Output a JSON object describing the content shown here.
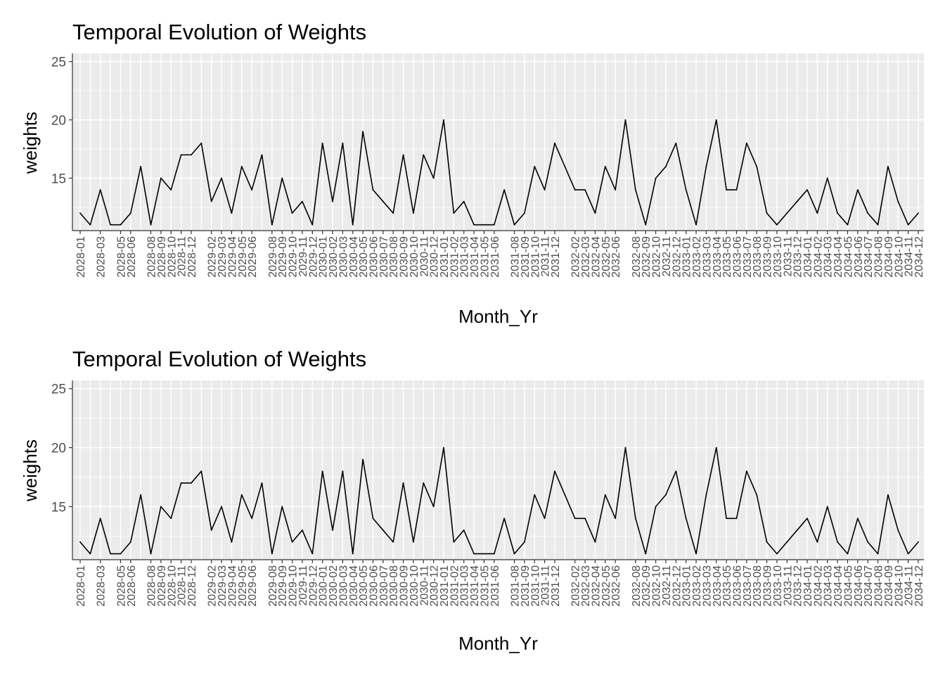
{
  "chart_data": [
    {
      "type": "line",
      "title": "Temporal Evolution of Weights",
      "xlabel": "Month_Yr",
      "ylabel": "weights",
      "ylim": [
        10.5,
        25.7
      ],
      "yticks": [
        15,
        20,
        25
      ],
      "grid": true,
      "x_tick_labels": [
        "2028-01",
        "2028-03",
        "2028-05",
        "2028-06",
        "2028-08",
        "2028-09",
        "2028-10",
        "2028-11",
        "2028-12",
        "2029-02",
        "2029-03",
        "2029-04",
        "2029-05",
        "2029-06",
        "2029-08",
        "2029-09",
        "2029-10",
        "2029-11",
        "2029-12",
        "2030-01",
        "2030-02",
        "2030-03",
        "2030-04",
        "2030-05",
        "2030-06",
        "2030-07",
        "2030-08",
        "2030-09",
        "2030-10",
        "2030-11",
        "2030-12",
        "2031-01",
        "2031-02",
        "2031-03",
        "2031-04",
        "2031-05",
        "2031-06",
        "2031-08",
        "2031-09",
        "2031-10",
        "2031-11",
        "2031-12",
        "2032-02",
        "2032-03",
        "2032-04",
        "2032-05",
        "2032-06",
        "2032-08",
        "2032-09",
        "2032-10",
        "2032-11",
        "2032-12",
        "2033-01",
        "2033-02",
        "2033-03",
        "2033-04",
        "2033-05",
        "2033-06",
        "2033-07",
        "2033-08",
        "2033-09",
        "2033-10",
        "2033-11",
        "2033-12",
        "2034-01",
        "2034-02",
        "2034-03",
        "2034-04",
        "2034-05",
        "2034-06",
        "2034-07",
        "2034-08",
        "2034-09",
        "2034-10",
        "2034-11",
        "2034-12"
      ],
      "series": [
        {
          "color": "#000000",
          "x": [
            "2028-01",
            "2028-02",
            "2028-03",
            "2028-04",
            "2028-05",
            "2028-06",
            "2028-07",
            "2028-08",
            "2028-09",
            "2028-10",
            "2028-11",
            "2028-12",
            "2029-01",
            "2029-02",
            "2029-03",
            "2029-04",
            "2029-05",
            "2029-06",
            "2029-07",
            "2029-08",
            "2029-09",
            "2029-10",
            "2029-11",
            "2029-12",
            "2030-01",
            "2030-02",
            "2030-03",
            "2030-04",
            "2030-05",
            "2030-06",
            "2030-07",
            "2030-08",
            "2030-09",
            "2030-10",
            "2030-11",
            "2030-12",
            "2031-01",
            "2031-02",
            "2031-03",
            "2031-04",
            "2031-05",
            "2031-06",
            "2031-07",
            "2031-08",
            "2031-09",
            "2031-10",
            "2031-11",
            "2031-12",
            "2032-01",
            "2032-02",
            "2032-03",
            "2032-04",
            "2032-05",
            "2032-06",
            "2032-07",
            "2032-08",
            "2032-09",
            "2032-10",
            "2032-11",
            "2032-12",
            "2033-01",
            "2033-02",
            "2033-03",
            "2033-04",
            "2033-05",
            "2033-06",
            "2033-07",
            "2033-08",
            "2033-09",
            "2033-10",
            "2033-11",
            "2033-12",
            "2034-01",
            "2034-02",
            "2034-03",
            "2034-04",
            "2034-05",
            "2034-06",
            "2034-07",
            "2034-08",
            "2034-09",
            "2034-10",
            "2034-11",
            "2034-12"
          ],
          "values": [
            12,
            11,
            14,
            11,
            11,
            12,
            16,
            11,
            15,
            14,
            17,
            17,
            18,
            13,
            15,
            12,
            16,
            14,
            17,
            11,
            15,
            12,
            13,
            11,
            18,
            13,
            18,
            11,
            19,
            14,
            13,
            12,
            17,
            12,
            17,
            15,
            20,
            12,
            13,
            11,
            11,
            11,
            14,
            11,
            12,
            16,
            14,
            18,
            16,
            14,
            14,
            12,
            16,
            14,
            20,
            14,
            11,
            15,
            16,
            18,
            14,
            11,
            16,
            20,
            14,
            14,
            18,
            16,
            12,
            11,
            12,
            13,
            14,
            12,
            15,
            12,
            11,
            14,
            12,
            11,
            16,
            13,
            11,
            12
          ]
        }
      ]
    },
    {
      "type": "line",
      "title": "Temporal Evolution of Weights",
      "xlabel": "Month_Yr",
      "ylabel": "weights",
      "ylim": [
        10.5,
        25.7
      ],
      "yticks": [
        15,
        20,
        25
      ],
      "grid": true,
      "x_tick_labels": [
        "2028-01",
        "2028-03",
        "2028-05",
        "2028-06",
        "2028-08",
        "2028-09",
        "2028-10",
        "2028-11",
        "2028-12",
        "2029-02",
        "2029-03",
        "2029-04",
        "2029-05",
        "2029-06",
        "2029-08",
        "2029-09",
        "2029-10",
        "2029-11",
        "2029-12",
        "2030-01",
        "2030-02",
        "2030-03",
        "2030-04",
        "2030-05",
        "2030-06",
        "2030-07",
        "2030-08",
        "2030-09",
        "2030-10",
        "2030-11",
        "2030-12",
        "2031-01",
        "2031-02",
        "2031-03",
        "2031-04",
        "2031-05",
        "2031-06",
        "2031-08",
        "2031-09",
        "2031-10",
        "2031-11",
        "2031-12",
        "2032-02",
        "2032-03",
        "2032-04",
        "2032-05",
        "2032-06",
        "2032-08",
        "2032-09",
        "2032-10",
        "2032-11",
        "2032-12",
        "2033-01",
        "2033-02",
        "2033-03",
        "2033-04",
        "2033-05",
        "2033-06",
        "2033-07",
        "2033-08",
        "2033-09",
        "2033-10",
        "2033-11",
        "2033-12",
        "2034-01",
        "2034-02",
        "2034-03",
        "2034-04",
        "2034-05",
        "2034-06",
        "2034-07",
        "2034-08",
        "2034-09",
        "2034-10",
        "2034-11",
        "2034-12"
      ],
      "series": [
        {
          "color": "#000000",
          "x": [
            "2028-01",
            "2028-02",
            "2028-03",
            "2028-04",
            "2028-05",
            "2028-06",
            "2028-07",
            "2028-08",
            "2028-09",
            "2028-10",
            "2028-11",
            "2028-12",
            "2029-01",
            "2029-02",
            "2029-03",
            "2029-04",
            "2029-05",
            "2029-06",
            "2029-07",
            "2029-08",
            "2029-09",
            "2029-10",
            "2029-11",
            "2029-12",
            "2030-01",
            "2030-02",
            "2030-03",
            "2030-04",
            "2030-05",
            "2030-06",
            "2030-07",
            "2030-08",
            "2030-09",
            "2030-10",
            "2030-11",
            "2030-12",
            "2031-01",
            "2031-02",
            "2031-03",
            "2031-04",
            "2031-05",
            "2031-06",
            "2031-07",
            "2031-08",
            "2031-09",
            "2031-10",
            "2031-11",
            "2031-12",
            "2032-01",
            "2032-02",
            "2032-03",
            "2032-04",
            "2032-05",
            "2032-06",
            "2032-07",
            "2032-08",
            "2032-09",
            "2032-10",
            "2032-11",
            "2032-12",
            "2033-01",
            "2033-02",
            "2033-03",
            "2033-04",
            "2033-05",
            "2033-06",
            "2033-07",
            "2033-08",
            "2033-09",
            "2033-10",
            "2033-11",
            "2033-12",
            "2034-01",
            "2034-02",
            "2034-03",
            "2034-04",
            "2034-05",
            "2034-06",
            "2034-07",
            "2034-08",
            "2034-09",
            "2034-10",
            "2034-11",
            "2034-12"
          ],
          "values": [
            12,
            11,
            14,
            11,
            11,
            12,
            16,
            11,
            15,
            14,
            17,
            17,
            18,
            13,
            15,
            12,
            16,
            14,
            17,
            11,
            15,
            12,
            13,
            11,
            18,
            13,
            18,
            11,
            19,
            14,
            13,
            12,
            17,
            12,
            17,
            15,
            20,
            12,
            13,
            11,
            11,
            11,
            14,
            11,
            12,
            16,
            14,
            18,
            16,
            14,
            14,
            12,
            16,
            14,
            20,
            14,
            11,
            15,
            16,
            18,
            14,
            11,
            16,
            20,
            14,
            14,
            18,
            16,
            12,
            11,
            12,
            13,
            14,
            12,
            15,
            12,
            11,
            14,
            12,
            11,
            16,
            13,
            11,
            12
          ]
        }
      ]
    }
  ]
}
